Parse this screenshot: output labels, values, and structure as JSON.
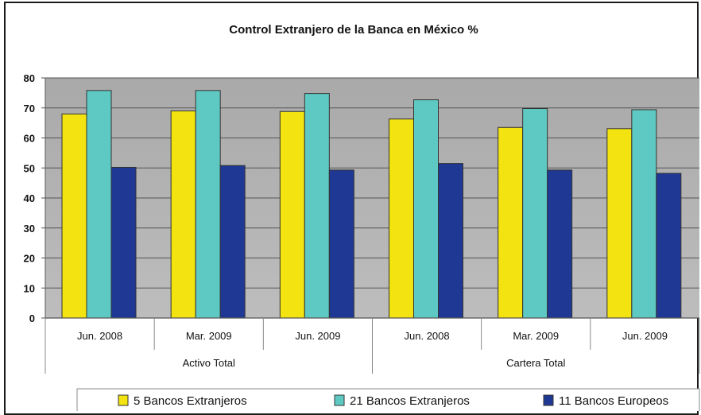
{
  "chart_data": {
    "type": "bar",
    "title": "Control Extranjero de la Banca en México %",
    "xlabel": "",
    "ylabel": "",
    "ylim": [
      0,
      80
    ],
    "yticks": [
      0,
      10,
      20,
      30,
      40,
      50,
      60,
      70,
      80
    ],
    "grid": true,
    "legend_position": "bottom",
    "categories": [
      "Jun. 2008",
      "Mar. 2009",
      "Jun. 2009",
      "Jun. 2008",
      "Mar. 2009",
      "Jun. 2009"
    ],
    "groups": [
      {
        "label": "Activo Total",
        "categories": 3
      },
      {
        "label": "Cartera Total",
        "categories": 3
      }
    ],
    "series": [
      {
        "name": "5 Bancos Extranjeros",
        "color": "#f2e311",
        "values": [
          68,
          69,
          68.8,
          66.3,
          63.5,
          63.1
        ]
      },
      {
        "name": "21 Bancos Extranjeros",
        "color": "#5ec9c2",
        "values": [
          75.8,
          75.8,
          74.8,
          72.7,
          69.8,
          69.4
        ]
      },
      {
        "name": "11 Bancos Europeos",
        "color": "#1f3894",
        "values": [
          50.2,
          50.8,
          49.3,
          51.5,
          49.3,
          48.2
        ]
      }
    ]
  }
}
